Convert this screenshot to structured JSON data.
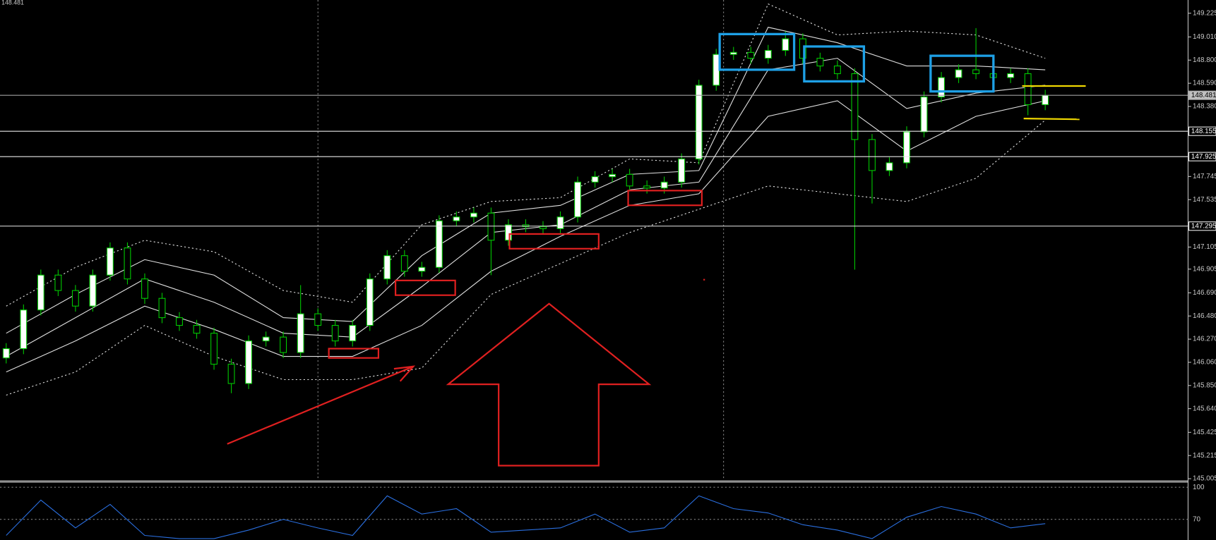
{
  "chart_data": {
    "type": "candlestick",
    "header": "148.481",
    "ylim": [
      144.99,
      149.345
    ],
    "yticks": [
      149.225,
      {
        "value": 149.01,
        "label": "149.010"
      },
      {
        "value": 148.8,
        "label": "148.800"
      },
      {
        "value": 148.59,
        "label": "148.590"
      },
      {
        "value": 148.38,
        "label": "148.380"
      },
      147.745,
      147.535,
      147.105,
      146.905,
      {
        "value": 146.69,
        "label": "146.690"
      },
      {
        "value": 146.48,
        "label": "146.480"
      },
      {
        "value": 146.27,
        "label": "146.270"
      },
      {
        "value": 146.06,
        "label": "146.060"
      },
      {
        "value": 145.85,
        "label": "145.850"
      },
      {
        "value": 145.64,
        "label": "145.640"
      },
      145.425,
      145.215,
      145.005
    ],
    "grid": false,
    "up_color": "#ffffff",
    "down_color": "#000000",
    "wick_color": "#00c800",
    "open": [
      146.1,
      146.184,
      146.535,
      146.851,
      146.711,
      146.57,
      146.851,
      147.097,
      146.816,
      146.64,
      146.465,
      146.395,
      146.324,
      146.043,
      145.868,
      146.254,
      146.289,
      146.149,
      146.5,
      146.395,
      146.254,
      146.395,
      146.816,
      147.027,
      146.886,
      146.921,
      147.343,
      147.378,
      147.413,
      147.167,
      147.307,
      147.29,
      147.272,
      147.378,
      147.694,
      147.743,
      147.764,
      147.659,
      147.64,
      147.694,
      147.904,
      148.572,
      148.852,
      148.87,
      148.817,
      148.888,
      148.993,
      148.817,
      148.747,
      148.677,
      148.08,
      147.799,
      147.869,
      148.15,
      148.466,
      148.642,
      148.712,
      148.677,
      148.642,
      148.677,
      148.396
    ],
    "high": [
      146.234,
      146.585,
      146.901,
      146.901,
      146.761,
      146.901,
      147.147,
      147.147,
      146.866,
      146.69,
      146.515,
      146.445,
      146.374,
      146.093,
      146.304,
      146.339,
      146.339,
      146.76,
      146.55,
      146.445,
      146.445,
      146.866,
      147.077,
      147.077,
      146.971,
      147.393,
      147.428,
      147.463,
      147.463,
      147.357,
      147.357,
      147.34,
      147.428,
      147.744,
      147.793,
      147.814,
      147.814,
      147.709,
      147.744,
      147.954,
      148.622,
      148.902,
      148.92,
      148.92,
      148.938,
      149.06,
      149.043,
      148.867,
      148.797,
      148.727,
      148.13,
      147.919,
      148.2,
      148.516,
      148.692,
      148.762,
      149.09,
      148.727,
      148.727,
      148.727,
      148.531
    ],
    "low": [
      146.05,
      146.134,
      146.485,
      146.661,
      146.52,
      146.52,
      146.801,
      146.766,
      146.59,
      146.415,
      146.345,
      146.274,
      145.993,
      145.78,
      145.818,
      146.204,
      146.099,
      146.099,
      146.345,
      146.204,
      146.204,
      146.345,
      146.766,
      146.836,
      146.836,
      146.871,
      147.293,
      147.328,
      146.85,
      147.117,
      147.24,
      147.222,
      147.222,
      147.328,
      147.644,
      147.693,
      147.609,
      147.59,
      147.59,
      147.644,
      147.854,
      148.522,
      148.802,
      148.767,
      148.767,
      148.838,
      148.767,
      148.697,
      148.627,
      146.9,
      147.5,
      147.749,
      147.819,
      148.1,
      148.416,
      148.592,
      148.627,
      148.592,
      148.592,
      148.3,
      148.346
    ],
    "close": [
      146.184,
      146.535,
      146.851,
      146.711,
      146.57,
      146.851,
      147.097,
      146.816,
      146.64,
      146.465,
      146.395,
      146.324,
      146.043,
      145.868,
      146.254,
      146.289,
      146.149,
      146.5,
      146.395,
      146.254,
      146.395,
      146.816,
      147.027,
      146.886,
      146.921,
      147.343,
      147.378,
      147.413,
      147.167,
      147.307,
      147.29,
      147.272,
      147.378,
      147.694,
      147.743,
      147.764,
      147.659,
      147.64,
      147.694,
      147.904,
      148.572,
      148.852,
      148.87,
      148.817,
      148.888,
      148.993,
      148.817,
      148.747,
      148.677,
      148.08,
      147.799,
      147.869,
      148.15,
      148.466,
      148.642,
      148.712,
      148.677,
      148.642,
      148.677,
      148.396,
      148.481
    ],
    "band_x": [
      0,
      4,
      8,
      12,
      16,
      20,
      24,
      28,
      32,
      36,
      40,
      44,
      48,
      52,
      56,
      60
    ],
    "bands": [
      {
        "style": "dotted",
        "color": "#e0e0e0",
        "values": [
          146.57,
          146.921,
          147.167,
          147.062,
          146.711,
          146.605,
          147.307,
          147.518,
          147.553,
          147.904,
          147.869,
          149.309,
          149.028,
          149.063,
          149.028,
          148.817
        ]
      },
      {
        "style": "solid",
        "color": "#e0e0e0",
        "values": [
          146.324,
          146.675,
          146.991,
          146.851,
          146.465,
          146.43,
          147.027,
          147.413,
          147.483,
          147.764,
          147.799,
          149.098,
          148.958,
          148.747,
          148.747,
          148.712
        ]
      },
      {
        "style": "solid",
        "color": "#e0e0e0",
        "values": [
          146.114,
          146.465,
          146.816,
          146.605,
          146.324,
          146.289,
          146.746,
          147.237,
          147.307,
          147.624,
          147.694,
          148.712,
          148.817,
          148.361,
          148.501,
          148.572
        ]
      },
      {
        "style": "solid",
        "color": "#e0e0e0",
        "values": [
          145.973,
          146.254,
          146.57,
          146.359,
          146.114,
          146.114,
          146.395,
          146.886,
          147.202,
          147.483,
          147.588,
          148.291,
          148.431,
          147.975,
          148.291,
          148.431
        ]
      },
      {
        "style": "dotted",
        "color": "#e0e0e0",
        "values": [
          145.763,
          145.973,
          146.395,
          146.114,
          145.903,
          145.903,
          146.008,
          146.675,
          146.956,
          147.237,
          147.448,
          147.659,
          147.588,
          147.518,
          147.729,
          148.256
        ]
      }
    ],
    "current_price": 148.481,
    "levels": [
      148.155,
      147.925,
      147.295
    ],
    "indicator": {
      "ylim": [
        50.7,
        104.3
      ],
      "yticks": [
        100,
        70
      ],
      "color": "#2a6fe0",
      "x": [
        0,
        2,
        4,
        6,
        8,
        10,
        12,
        14,
        16,
        18,
        20,
        22,
        24,
        26,
        28,
        30,
        32,
        34,
        36,
        38,
        40,
        42,
        44,
        46,
        48,
        50,
        52,
        54,
        56,
        58,
        60
      ],
      "values": [
        55,
        88,
        62,
        84,
        55,
        52,
        52,
        60,
        70,
        62,
        55,
        92,
        75,
        80,
        58,
        60,
        62,
        75,
        58,
        62,
        92,
        80,
        76,
        65,
        60,
        52,
        72,
        82,
        75,
        62,
        66
      ]
    }
  }
}
